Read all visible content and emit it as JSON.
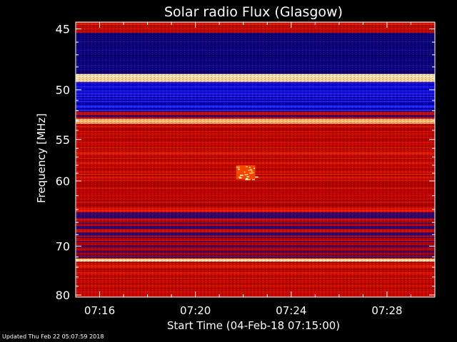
{
  "chart_data": {
    "type": "heatmap",
    "title": "Solar radio Flux (Glasgow)",
    "xlabel": "Start Time (04-Feb-18 07:15:00)",
    "ylabel": "Frequency [MHz]",
    "x_tick_labels": [
      "07:16",
      "07:20",
      "07:24",
      "07:28"
    ],
    "x_ticks_minutes": [
      1,
      5,
      9,
      13
    ],
    "xlim_minutes": [
      0,
      15
    ],
    "y_tick_labels": [
      "45",
      "50",
      "55",
      "60",
      "70",
      "80"
    ],
    "y_ticks": [
      45,
      50,
      55,
      60,
      70,
      80
    ],
    "ylim": [
      44.5,
      80.5
    ],
    "colorscale": [
      "#000080",
      "#1010ff",
      "#cc0000",
      "#ff4000",
      "#ffd060",
      "#ffffd0"
    ],
    "bands": [
      {
        "from": 44.5,
        "to": 45.3,
        "level": "red"
      },
      {
        "from": 45.3,
        "to": 48.6,
        "level": "dark-blue"
      },
      {
        "from": 48.6,
        "to": 49.3,
        "level": "bright"
      },
      {
        "from": 49.3,
        "to": 52.1,
        "level": "blue"
      },
      {
        "from": 52.1,
        "to": 52.8,
        "level": "mixed"
      },
      {
        "from": 52.8,
        "to": 53.3,
        "level": "bright"
      },
      {
        "from": 53.3,
        "to": 64.0,
        "level": "red"
      },
      {
        "from": 64.0,
        "to": 64.4,
        "level": "bright-red"
      },
      {
        "from": 64.4,
        "to": 72.3,
        "level": "mixed"
      },
      {
        "from": 72.3,
        "to": 72.9,
        "level": "bright"
      },
      {
        "from": 72.9,
        "to": 80.5,
        "level": "red"
      }
    ],
    "bursts": [
      {
        "t_start": 6.7,
        "t_end": 7.5,
        "f_low": 58.0,
        "f_high": 59.8
      }
    ],
    "grid": false,
    "legend": "none"
  },
  "footer": {
    "updated": "Updated Thu Feb 22 05:07:59 2018"
  }
}
